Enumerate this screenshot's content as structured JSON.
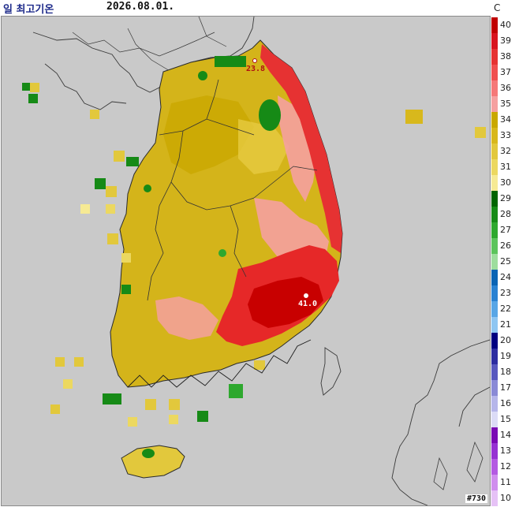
{
  "header": {
    "title": "일 최고기온",
    "date": "2026.08.01.",
    "unit": "C"
  },
  "legend": {
    "values": [
      "40",
      "39",
      "38",
      "37",
      "36",
      "35",
      "34",
      "33",
      "32",
      "31",
      "30",
      "29",
      "28",
      "27",
      "26",
      "25",
      "24",
      "23",
      "22",
      "21",
      "20",
      "19",
      "18",
      "17",
      "16",
      "15",
      "14",
      "13",
      "12",
      "11",
      "10"
    ],
    "colors": [
      "#c00000",
      "#d8141e",
      "#e63232",
      "#f04f4f",
      "#f57878",
      "#f5a0a0",
      "#c9a800",
      "#d8b81c",
      "#e2c83c",
      "#ecd860",
      "#f6ea94",
      "#006400",
      "#168a16",
      "#2ea82e",
      "#5cc45c",
      "#9ede9e",
      "#0a64b4",
      "#2a82d2",
      "#58a6e6",
      "#8ec6f2",
      "#000080",
      "#2c2ca0",
      "#5858be",
      "#8a8ad6",
      "#b6b6ea",
      "#dcdcf6",
      "#7a0ab4",
      "#9632d2",
      "#b45ae2",
      "#d08eee",
      "#e6c2f6"
    ]
  },
  "stations": [
    {
      "label": "23.8",
      "color": "#b01010"
    },
    {
      "label": "41.0",
      "color": "#ffffff"
    }
  ],
  "station_id": "#730"
}
